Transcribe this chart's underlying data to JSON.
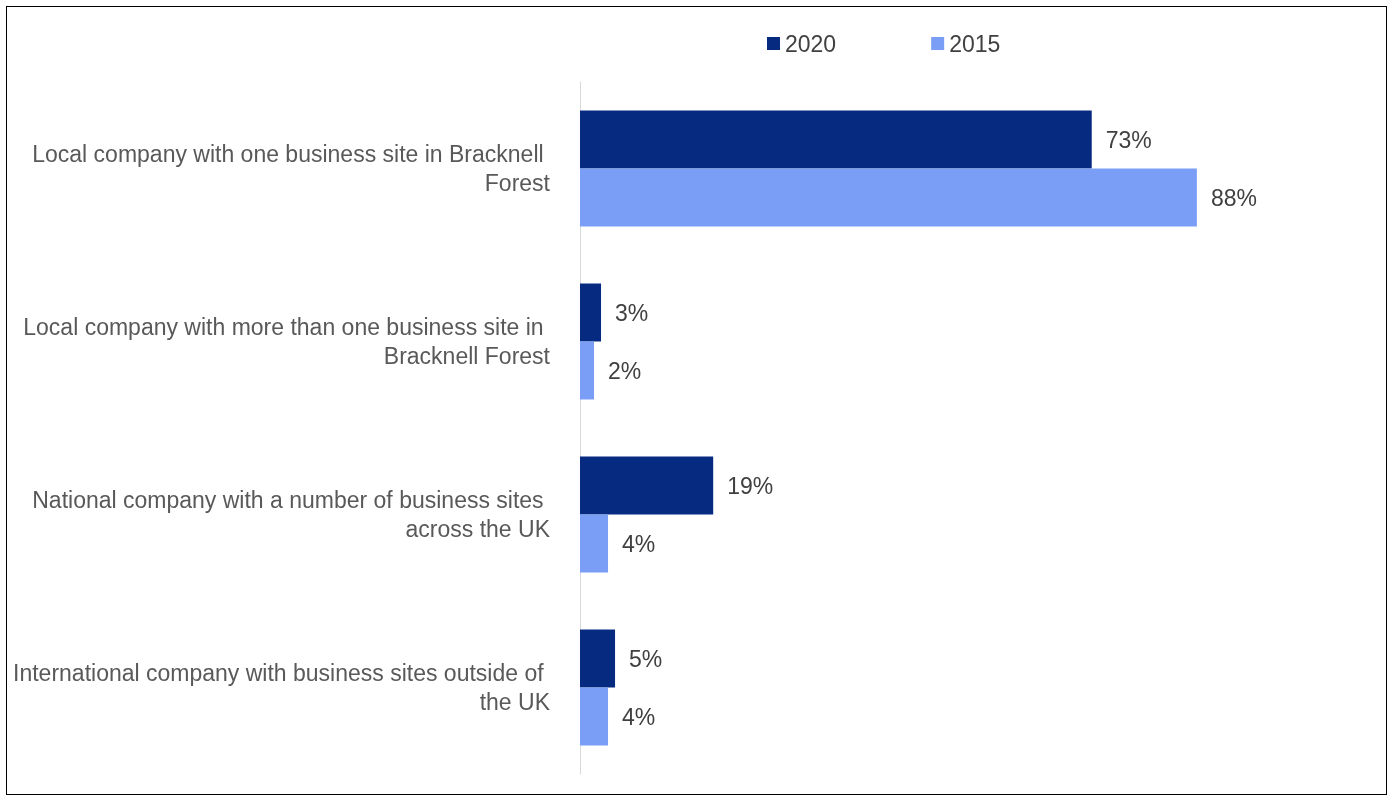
{
  "chart_data": {
    "type": "bar",
    "orientation": "horizontal",
    "legend": "top",
    "categories": [
      "Local company with one business site in Bracknell Forest",
      "Local company with more than one business site in Bracknell Forest",
      "National company with a number of business sites across the UK",
      "International company with business sites outside of the UK"
    ],
    "series": [
      {
        "name": "2020",
        "color": "#062a80",
        "values": [
          73,
          3,
          19,
          5
        ],
        "value_labels": [
          "73%",
          "3%",
          "19%",
          "5%"
        ]
      },
      {
        "name": "2015",
        "color": "#7a9ef5",
        "values": [
          88,
          2,
          4,
          4
        ],
        "value_labels": [
          "88%",
          "2%",
          "4%",
          "4%"
        ]
      }
    ]
  }
}
